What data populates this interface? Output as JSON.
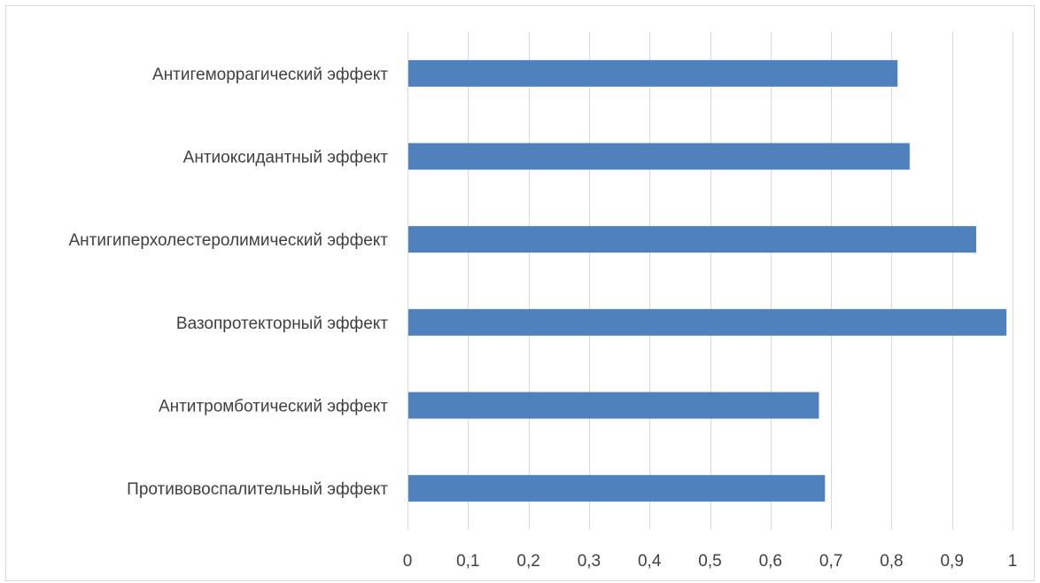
{
  "chart_data": {
    "type": "bar",
    "orientation": "horizontal",
    "categories": [
      "Антигеморрагический эффект",
      "Антиоксидантный эффект",
      "Антигиперхолестеролимический эффект",
      "Вазопротекторный эффект",
      "Антитромботический эффект",
      "Противовоспалительный эффект"
    ],
    "values": [
      0.81,
      0.83,
      0.94,
      0.99,
      0.68,
      0.69
    ],
    "xlim": [
      0,
      1
    ],
    "x_ticks": [
      "0",
      "0,1",
      "0,2",
      "0,3",
      "0,4",
      "0,5",
      "0,6",
      "0,7",
      "0,8",
      "0,9",
      "1"
    ],
    "x_tick_values": [
      0,
      0.1,
      0.2,
      0.3,
      0.4,
      0.5,
      0.6,
      0.7,
      0.8,
      0.9,
      1.0
    ],
    "grid": true,
    "bar_color": "#4F81BD",
    "title": "",
    "xlabel": "",
    "ylabel": ""
  }
}
